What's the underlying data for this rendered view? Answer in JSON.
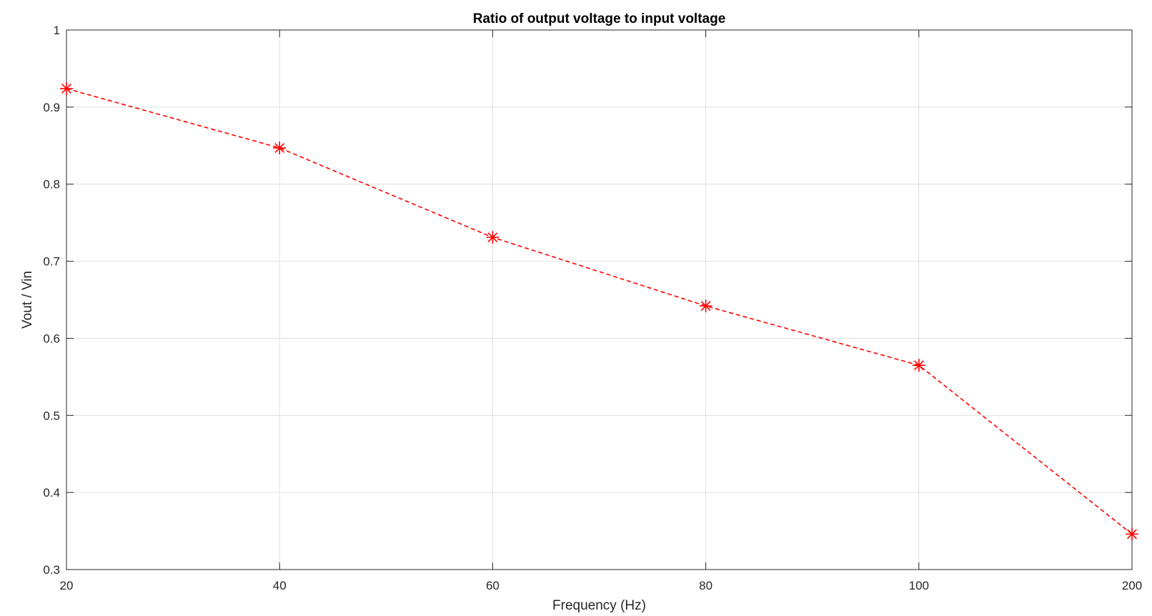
{
  "chart_data": {
    "type": "line",
    "title": "Ratio of output voltage to input voltage",
    "xlabel": "Frequency (Hz)",
    "ylabel": "Vout / Vin",
    "x_ticks": [
      "20",
      "40",
      "60",
      "80",
      "100",
      "200"
    ],
    "y_ticks": [
      "0.3",
      "0.4",
      "0.5",
      "0.6",
      "0.7",
      "0.8",
      "0.9",
      "1"
    ],
    "x_scale": "categorical-uneven",
    "ylim": [
      0.3,
      1
    ],
    "grid": true,
    "series": [
      {
        "x": [
          20,
          40,
          60,
          80,
          100,
          200
        ],
        "y": [
          0.924,
          0.847,
          0.731,
          0.642,
          0.565,
          0.346
        ],
        "color": "#ff0000",
        "line_style": "dashed",
        "marker": "asterisk"
      }
    ]
  }
}
